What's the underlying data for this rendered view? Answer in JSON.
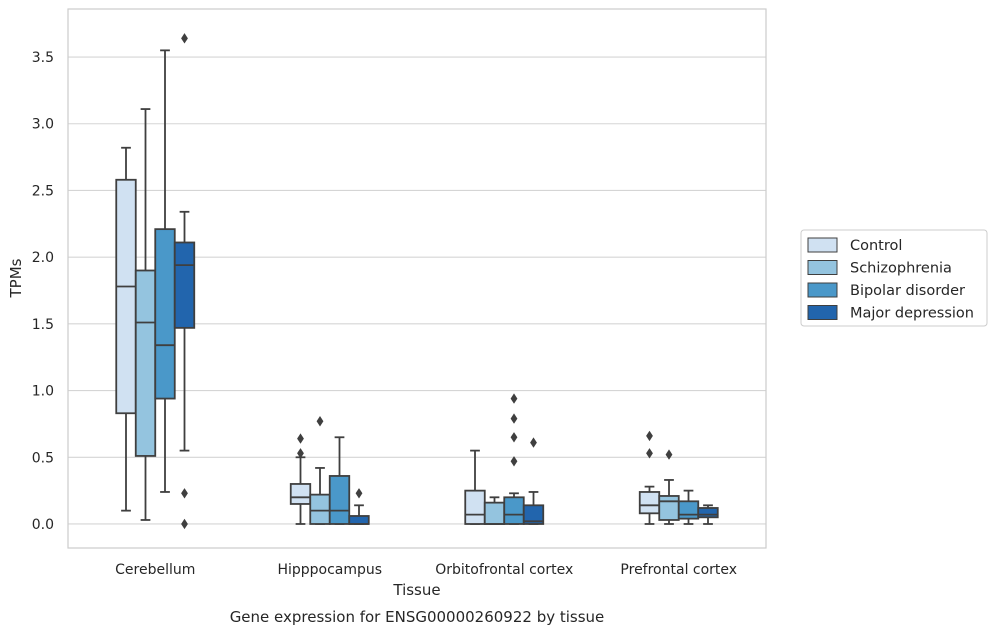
{
  "caption": "Gene expression for ENSG00000260922 by tissue",
  "chart_data": {
    "type": "boxplot",
    "xlabel": "Tissue",
    "ylabel": "TPMs",
    "ylim": [
      -0.18,
      3.86
    ],
    "yticks": [
      0.0,
      0.5,
      1.0,
      1.5,
      2.0,
      2.5,
      3.0,
      3.5
    ],
    "ytick_labels": [
      "0.0",
      "0.5",
      "1.0",
      "1.5",
      "2.0",
      "2.5",
      "3.0",
      "3.5"
    ],
    "grid": "horizontal",
    "legend_position": "right",
    "categories": [
      "Cerebellum",
      "Hipppocampus",
      "Orbitofrontal cortex",
      "Prefrontal cortex"
    ],
    "series": [
      {
        "name": "Control",
        "color": "#d0e1f2",
        "boxes": [
          {
            "whislo": 0.1,
            "q1": 0.83,
            "med": 1.78,
            "q3": 2.58,
            "whishi": 2.82,
            "fliers": []
          },
          {
            "whislo": 0.0,
            "q1": 0.15,
            "med": 0.2,
            "q3": 0.3,
            "whishi": 0.5,
            "fliers": [
              0.53,
              0.64
            ]
          },
          {
            "whislo": 0.0,
            "q1": 0.0,
            "med": 0.07,
            "q3": 0.25,
            "whishi": 0.55,
            "fliers": []
          },
          {
            "whislo": 0.0,
            "q1": 0.08,
            "med": 0.14,
            "q3": 0.24,
            "whishi": 0.28,
            "fliers": [
              0.53,
              0.66
            ]
          }
        ]
      },
      {
        "name": "Schizophrenia",
        "color": "#94c4df",
        "boxes": [
          {
            "whislo": 0.03,
            "q1": 0.51,
            "med": 1.51,
            "q3": 1.9,
            "whishi": 3.11,
            "fliers": []
          },
          {
            "whislo": 0.0,
            "q1": 0.0,
            "med": 0.1,
            "q3": 0.22,
            "whishi": 0.42,
            "fliers": [
              0.77
            ]
          },
          {
            "whislo": 0.0,
            "q1": 0.0,
            "med": 0.0,
            "q3": 0.16,
            "whishi": 0.2,
            "fliers": []
          },
          {
            "whislo": 0.0,
            "q1": 0.03,
            "med": 0.17,
            "q3": 0.21,
            "whishi": 0.33,
            "fliers": [
              0.52
            ]
          }
        ]
      },
      {
        "name": "Bipolar disorder",
        "color": "#4a98c9",
        "boxes": [
          {
            "whislo": 0.24,
            "q1": 0.94,
            "med": 1.34,
            "q3": 2.21,
            "whishi": 3.55,
            "fliers": []
          },
          {
            "whislo": 0.0,
            "q1": 0.0,
            "med": 0.1,
            "q3": 0.36,
            "whishi": 0.65,
            "fliers": []
          },
          {
            "whislo": 0.0,
            "q1": 0.0,
            "med": 0.07,
            "q3": 0.2,
            "whishi": 0.23,
            "fliers": [
              0.47,
              0.65,
              0.79,
              0.94
            ]
          },
          {
            "whislo": 0.0,
            "q1": 0.04,
            "med": 0.07,
            "q3": 0.17,
            "whishi": 0.25,
            "fliers": []
          }
        ]
      },
      {
        "name": "Major depression",
        "color": "#2265ad",
        "boxes": [
          {
            "whislo": 0.55,
            "q1": 1.47,
            "med": 1.94,
            "q3": 2.11,
            "whishi": 2.34,
            "fliers": [
              0.0,
              0.23,
              3.64
            ]
          },
          {
            "whislo": 0.0,
            "q1": 0.0,
            "med": 0.0,
            "q3": 0.06,
            "whishi": 0.14,
            "fliers": [
              0.23
            ]
          },
          {
            "whislo": 0.0,
            "q1": 0.0,
            "med": 0.02,
            "q3": 0.14,
            "whishi": 0.24,
            "fliers": [
              0.61
            ]
          },
          {
            "whislo": 0.0,
            "q1": 0.05,
            "med": 0.07,
            "q3": 0.12,
            "whishi": 0.14,
            "fliers": []
          }
        ]
      }
    ]
  }
}
